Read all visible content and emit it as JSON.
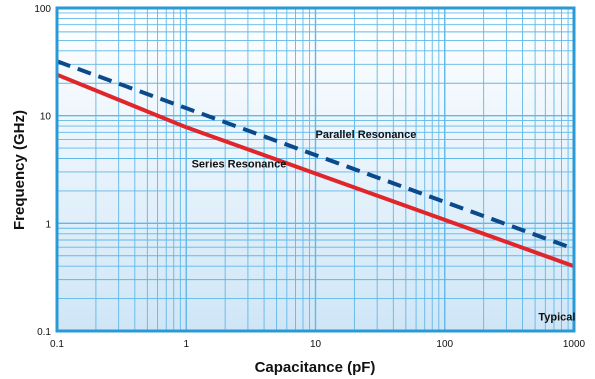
{
  "chart_data": {
    "type": "line",
    "x_scale": "log",
    "y_scale": "log",
    "xlim": [
      0.1,
      1000
    ],
    "ylim": [
      0.1,
      100
    ],
    "xlabel": "Capacitance (pF)",
    "ylabel": "Frequency (GHz)",
    "x_ticks": [
      "0.1",
      "1",
      "10",
      "100",
      "1000"
    ],
    "y_ticks": [
      "0.1",
      "1",
      "10",
      "100"
    ],
    "grid": true,
    "series": [
      {
        "name": "Parallel Resonance",
        "style": "dashed",
        "color": "#0a4a8c",
        "x": [
          0.1,
          1000
        ],
        "y": [
          32,
          0.58
        ]
      },
      {
        "name": "Series Resonance",
        "style": "solid",
        "color": "#e0262b",
        "x": [
          0.1,
          1,
          1000
        ],
        "y": [
          24,
          7.8,
          0.4
        ]
      }
    ],
    "annotations": [
      {
        "id": "parallel",
        "text": "Parallel Resonance",
        "x": 10,
        "y": 6.2
      },
      {
        "id": "series",
        "text": "Series Resonance",
        "x": 1.1,
        "y": 3.3
      },
      {
        "id": "typical",
        "text": "Typical",
        "x": 530,
        "y": 0.125
      }
    ],
    "colors": {
      "frame": "#2a9ad6",
      "grid": "#5fb8e8",
      "plot_bg_top": "#ffffff",
      "plot_bg_bottom": "#cfe6f7"
    }
  }
}
